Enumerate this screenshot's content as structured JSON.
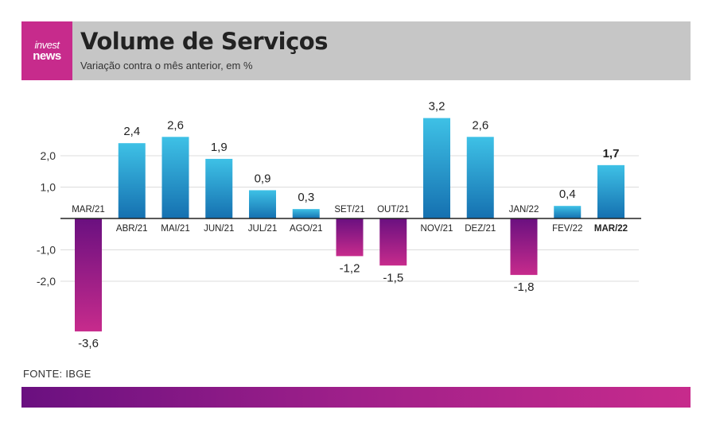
{
  "header": {
    "logo_top": "invest",
    "logo_bottom": "news",
    "title": "Volume de Serviços",
    "subtitle": "Variação contra o mês anterior, em %"
  },
  "source": "FONTE: IBGE",
  "colors": {
    "positive_top": "#3ec1e6",
    "positive_bottom": "#1570b0",
    "negative_top": "#6a1080",
    "negative_bottom": "#c72b8c",
    "header_bg": "#c6c6c6",
    "logo_bg": "#c72b8c"
  },
  "chart_data": {
    "type": "bar",
    "title": "Volume de Serviços",
    "subtitle": "Variação contra o mês anterior, em %",
    "categories": [
      "MAR/21",
      "ABR/21",
      "MAI/21",
      "JUN/21",
      "JUL/21",
      "AGO/21",
      "SET/21",
      "OUT/21",
      "NOV/21",
      "DEZ/21",
      "JAN/22",
      "FEV/22",
      "MAR/22"
    ],
    "values": [
      -3.6,
      2.4,
      2.6,
      1.9,
      0.9,
      0.3,
      -1.2,
      -1.5,
      3.2,
      2.6,
      -1.8,
      0.4,
      1.7
    ],
    "value_labels": [
      "-3,6",
      "2,4",
      "2,6",
      "1,9",
      "0,9",
      "0,3",
      "-1,2",
      "-1,5",
      "3,2",
      "2,6",
      "-1,8",
      "0,4",
      "1,7"
    ],
    "y_ticks": [
      2.0,
      1.0,
      -1.0,
      -2.0
    ],
    "y_tick_labels": [
      "2,0",
      "1,0",
      "-1,0",
      "-2,0"
    ],
    "highlight_category": "MAR/22",
    "ylim": [
      -3.6,
      3.2
    ],
    "grid": true,
    "legend": "none"
  }
}
